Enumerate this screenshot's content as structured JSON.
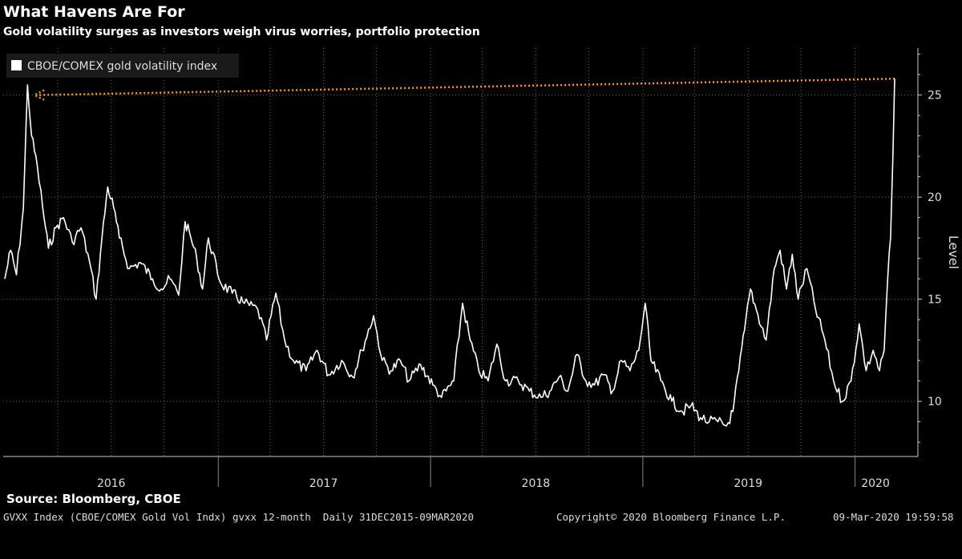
{
  "header": {
    "title": "What Havens Are For",
    "subtitle": "Gold volatility surges as investors weigh virus worries, portfolio protection"
  },
  "source": "Source: Bloomberg, CBOE",
  "footer": {
    "left": "GVXX Index (CBOE/COMEX Gold Vol Indx) gvxx 12-month  Daily 31DEC2015-09MAR2020",
    "middle": "Copyright© 2020 Bloomberg Finance L.P.",
    "right": "09-Mar-2020 19:59:58"
  },
  "colors": {
    "background": "#000000",
    "line": "#ffffff",
    "arrow": "#ff9a00",
    "grid": "#666666"
  },
  "chart_data": {
    "type": "line",
    "title": "What Havens Are For",
    "ylabel": "Level",
    "ylim": [
      7.3,
      27.3
    ],
    "yticks": [
      10,
      15,
      20,
      25
    ],
    "grid": true,
    "legend_position": "top-left",
    "x_range": [
      "2015-12-31",
      "2020-03-09"
    ],
    "x_tick_labels": [
      "2016",
      "2017",
      "2018",
      "2019",
      "2020"
    ],
    "series": [
      {
        "name": "CBOE/COMEX gold volatility index",
        "points": [
          [
            "2015-12-31",
            16.0
          ],
          [
            "2016-01-10",
            17.4
          ],
          [
            "2016-01-20",
            16.2
          ],
          [
            "2016-02-01",
            19.5
          ],
          [
            "2016-02-08",
            25.5
          ],
          [
            "2016-02-15",
            23.0
          ],
          [
            "2016-02-25",
            21.5
          ],
          [
            "2016-03-05",
            19.5
          ],
          [
            "2016-03-15",
            17.5
          ],
          [
            "2016-03-28",
            18.5
          ],
          [
            "2016-04-10",
            19.0
          ],
          [
            "2016-04-25",
            17.8
          ],
          [
            "2016-05-10",
            18.5
          ],
          [
            "2016-05-25",
            16.8
          ],
          [
            "2016-06-05",
            15.0
          ],
          [
            "2016-06-15",
            18.0
          ],
          [
            "2016-06-25",
            20.5
          ],
          [
            "2016-07-05",
            19.5
          ],
          [
            "2016-07-15",
            18.0
          ],
          [
            "2016-08-01",
            16.5
          ],
          [
            "2016-08-20",
            16.8
          ],
          [
            "2016-09-10",
            16.0
          ],
          [
            "2016-09-25",
            15.5
          ],
          [
            "2016-10-10",
            16.0
          ],
          [
            "2016-10-25",
            15.2
          ],
          [
            "2016-11-05",
            18.8
          ],
          [
            "2016-11-15",
            18.0
          ],
          [
            "2016-11-25",
            17.0
          ],
          [
            "2016-12-05",
            15.5
          ],
          [
            "2016-12-15",
            18.0
          ],
          [
            "2017-01-05",
            15.8
          ],
          [
            "2017-01-25",
            15.3
          ],
          [
            "2017-02-15",
            14.8
          ],
          [
            "2017-03-10",
            14.5
          ],
          [
            "2017-03-25",
            13.0
          ],
          [
            "2017-04-10",
            15.3
          ],
          [
            "2017-04-25",
            13.0
          ],
          [
            "2017-05-10",
            12.0
          ],
          [
            "2017-06-01",
            11.5
          ],
          [
            "2017-06-20",
            12.5
          ],
          [
            "2017-07-10",
            11.3
          ],
          [
            "2017-08-01",
            12.0
          ],
          [
            "2017-08-20",
            11.2
          ],
          [
            "2017-09-05",
            12.5
          ],
          [
            "2017-09-25",
            14.2
          ],
          [
            "2017-10-10",
            12.0
          ],
          [
            "2017-10-25",
            11.5
          ],
          [
            "2017-11-10",
            12.0
          ],
          [
            "2017-11-25",
            11.0
          ],
          [
            "2017-12-15",
            11.8
          ],
          [
            "2018-01-05",
            10.8
          ],
          [
            "2018-01-20",
            10.2
          ],
          [
            "2018-02-10",
            11.0
          ],
          [
            "2018-02-25",
            14.8
          ],
          [
            "2018-03-10",
            13.0
          ],
          [
            "2018-03-25",
            11.5
          ],
          [
            "2018-04-10",
            11.0
          ],
          [
            "2018-04-25",
            12.8
          ],
          [
            "2018-05-10",
            11.0
          ],
          [
            "2018-06-01",
            11.0
          ],
          [
            "2018-06-20",
            10.5
          ],
          [
            "2018-07-10",
            10.2
          ],
          [
            "2018-07-25",
            10.5
          ],
          [
            "2018-08-10",
            11.2
          ],
          [
            "2018-08-25",
            10.5
          ],
          [
            "2018-09-10",
            12.3
          ],
          [
            "2018-09-25",
            11.0
          ],
          [
            "2018-10-10",
            10.8
          ],
          [
            "2018-10-25",
            11.3
          ],
          [
            "2018-11-10",
            10.5
          ],
          [
            "2018-11-25",
            12.0
          ],
          [
            "2018-12-10",
            11.5
          ],
          [
            "2018-12-25",
            12.5
          ],
          [
            "2019-01-05",
            14.8
          ],
          [
            "2019-01-15",
            12.0
          ],
          [
            "2019-02-01",
            11.0
          ],
          [
            "2019-02-20",
            10.0
          ],
          [
            "2019-03-10",
            9.5
          ],
          [
            "2019-03-25",
            9.8
          ],
          [
            "2019-04-10",
            9.2
          ],
          [
            "2019-04-25",
            9.0
          ],
          [
            "2019-05-10",
            9.0
          ],
          [
            "2019-05-25",
            8.8
          ],
          [
            "2019-06-05",
            9.5
          ],
          [
            "2019-06-15",
            11.5
          ],
          [
            "2019-06-25",
            13.5
          ],
          [
            "2019-07-05",
            15.5
          ],
          [
            "2019-07-15",
            14.5
          ],
          [
            "2019-08-01",
            13.0
          ],
          [
            "2019-08-15",
            16.5
          ],
          [
            "2019-08-25",
            17.4
          ],
          [
            "2019-09-05",
            15.5
          ],
          [
            "2019-09-15",
            17.2
          ],
          [
            "2019-09-25",
            15.0
          ],
          [
            "2019-10-10",
            16.5
          ],
          [
            "2019-10-25",
            14.5
          ],
          [
            "2019-11-10",
            13.0
          ],
          [
            "2019-11-25",
            11.0
          ],
          [
            "2019-12-10",
            10.0
          ],
          [
            "2019-12-25",
            11.0
          ],
          [
            "2020-01-08",
            13.8
          ],
          [
            "2020-01-20",
            11.5
          ],
          [
            "2020-02-01",
            12.5
          ],
          [
            "2020-02-12",
            11.5
          ],
          [
            "2020-02-20",
            12.5
          ],
          [
            "2020-02-26",
            16.0
          ],
          [
            "2020-03-02",
            18.0
          ],
          [
            "2020-03-06",
            22.0
          ],
          [
            "2020-03-09",
            25.8
          ]
        ]
      }
    ],
    "annotation": {
      "type": "dotted-arrow",
      "from": [
        "2020-03-09",
        25.8
      ],
      "to": [
        "2016-02-20",
        25.0
      ]
    }
  }
}
